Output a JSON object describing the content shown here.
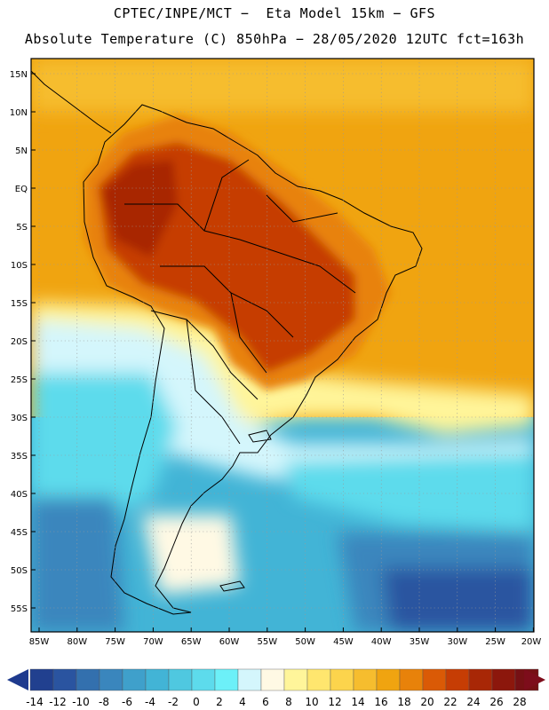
{
  "header": {
    "line1": "CPTEC/INPE/MCT −  Eta Model 15km − GFS",
    "line2": "Absolute Temperature (C) 850hPa − 28/05/2020 12UTC fct=163h"
  },
  "map": {
    "lat_labels": [
      "15N",
      "10N",
      "5N",
      "EQ",
      "5S",
      "10S",
      "15S",
      "20S",
      "25S",
      "30S",
      "35S",
      "40S",
      "45S",
      "50S",
      "55S"
    ],
    "lon_labels": [
      "85W",
      "80W",
      "75W",
      "70W",
      "65W",
      "60W",
      "55W",
      "50W",
      "45W",
      "40W",
      "35W",
      "30W",
      "25W",
      "20W"
    ],
    "extent": {
      "lon_min": -86.0,
      "lon_max": -19.5,
      "lat_min": -58.0,
      "lat_max": 17.0
    }
  },
  "colorbar": {
    "labels": [
      "-14",
      "-12",
      "-10",
      "-8",
      "-6",
      "-4",
      "-2",
      "0",
      "2",
      "4",
      "6",
      "8",
      "10",
      "12",
      "14",
      "16",
      "18",
      "20",
      "22",
      "24",
      "26",
      "28"
    ],
    "under_color": "#1e3a8e",
    "over_color": "#7d0d1b",
    "colors": [
      "#21408f",
      "#2a54a0",
      "#3370ae",
      "#3a86bd",
      "#3fa0cb",
      "#42b4d6",
      "#4fc8e0",
      "#5ddbec",
      "#6cf0f8",
      "#d4f6fc",
      "#fff9e4",
      "#fff59a",
      "#ffe66e",
      "#fcd44c",
      "#f6bd2e",
      "#f0a410",
      "#e8820a",
      "#da5a06",
      "#c63d04",
      "#a82706",
      "#8c170c",
      "#761014"
    ]
  }
}
